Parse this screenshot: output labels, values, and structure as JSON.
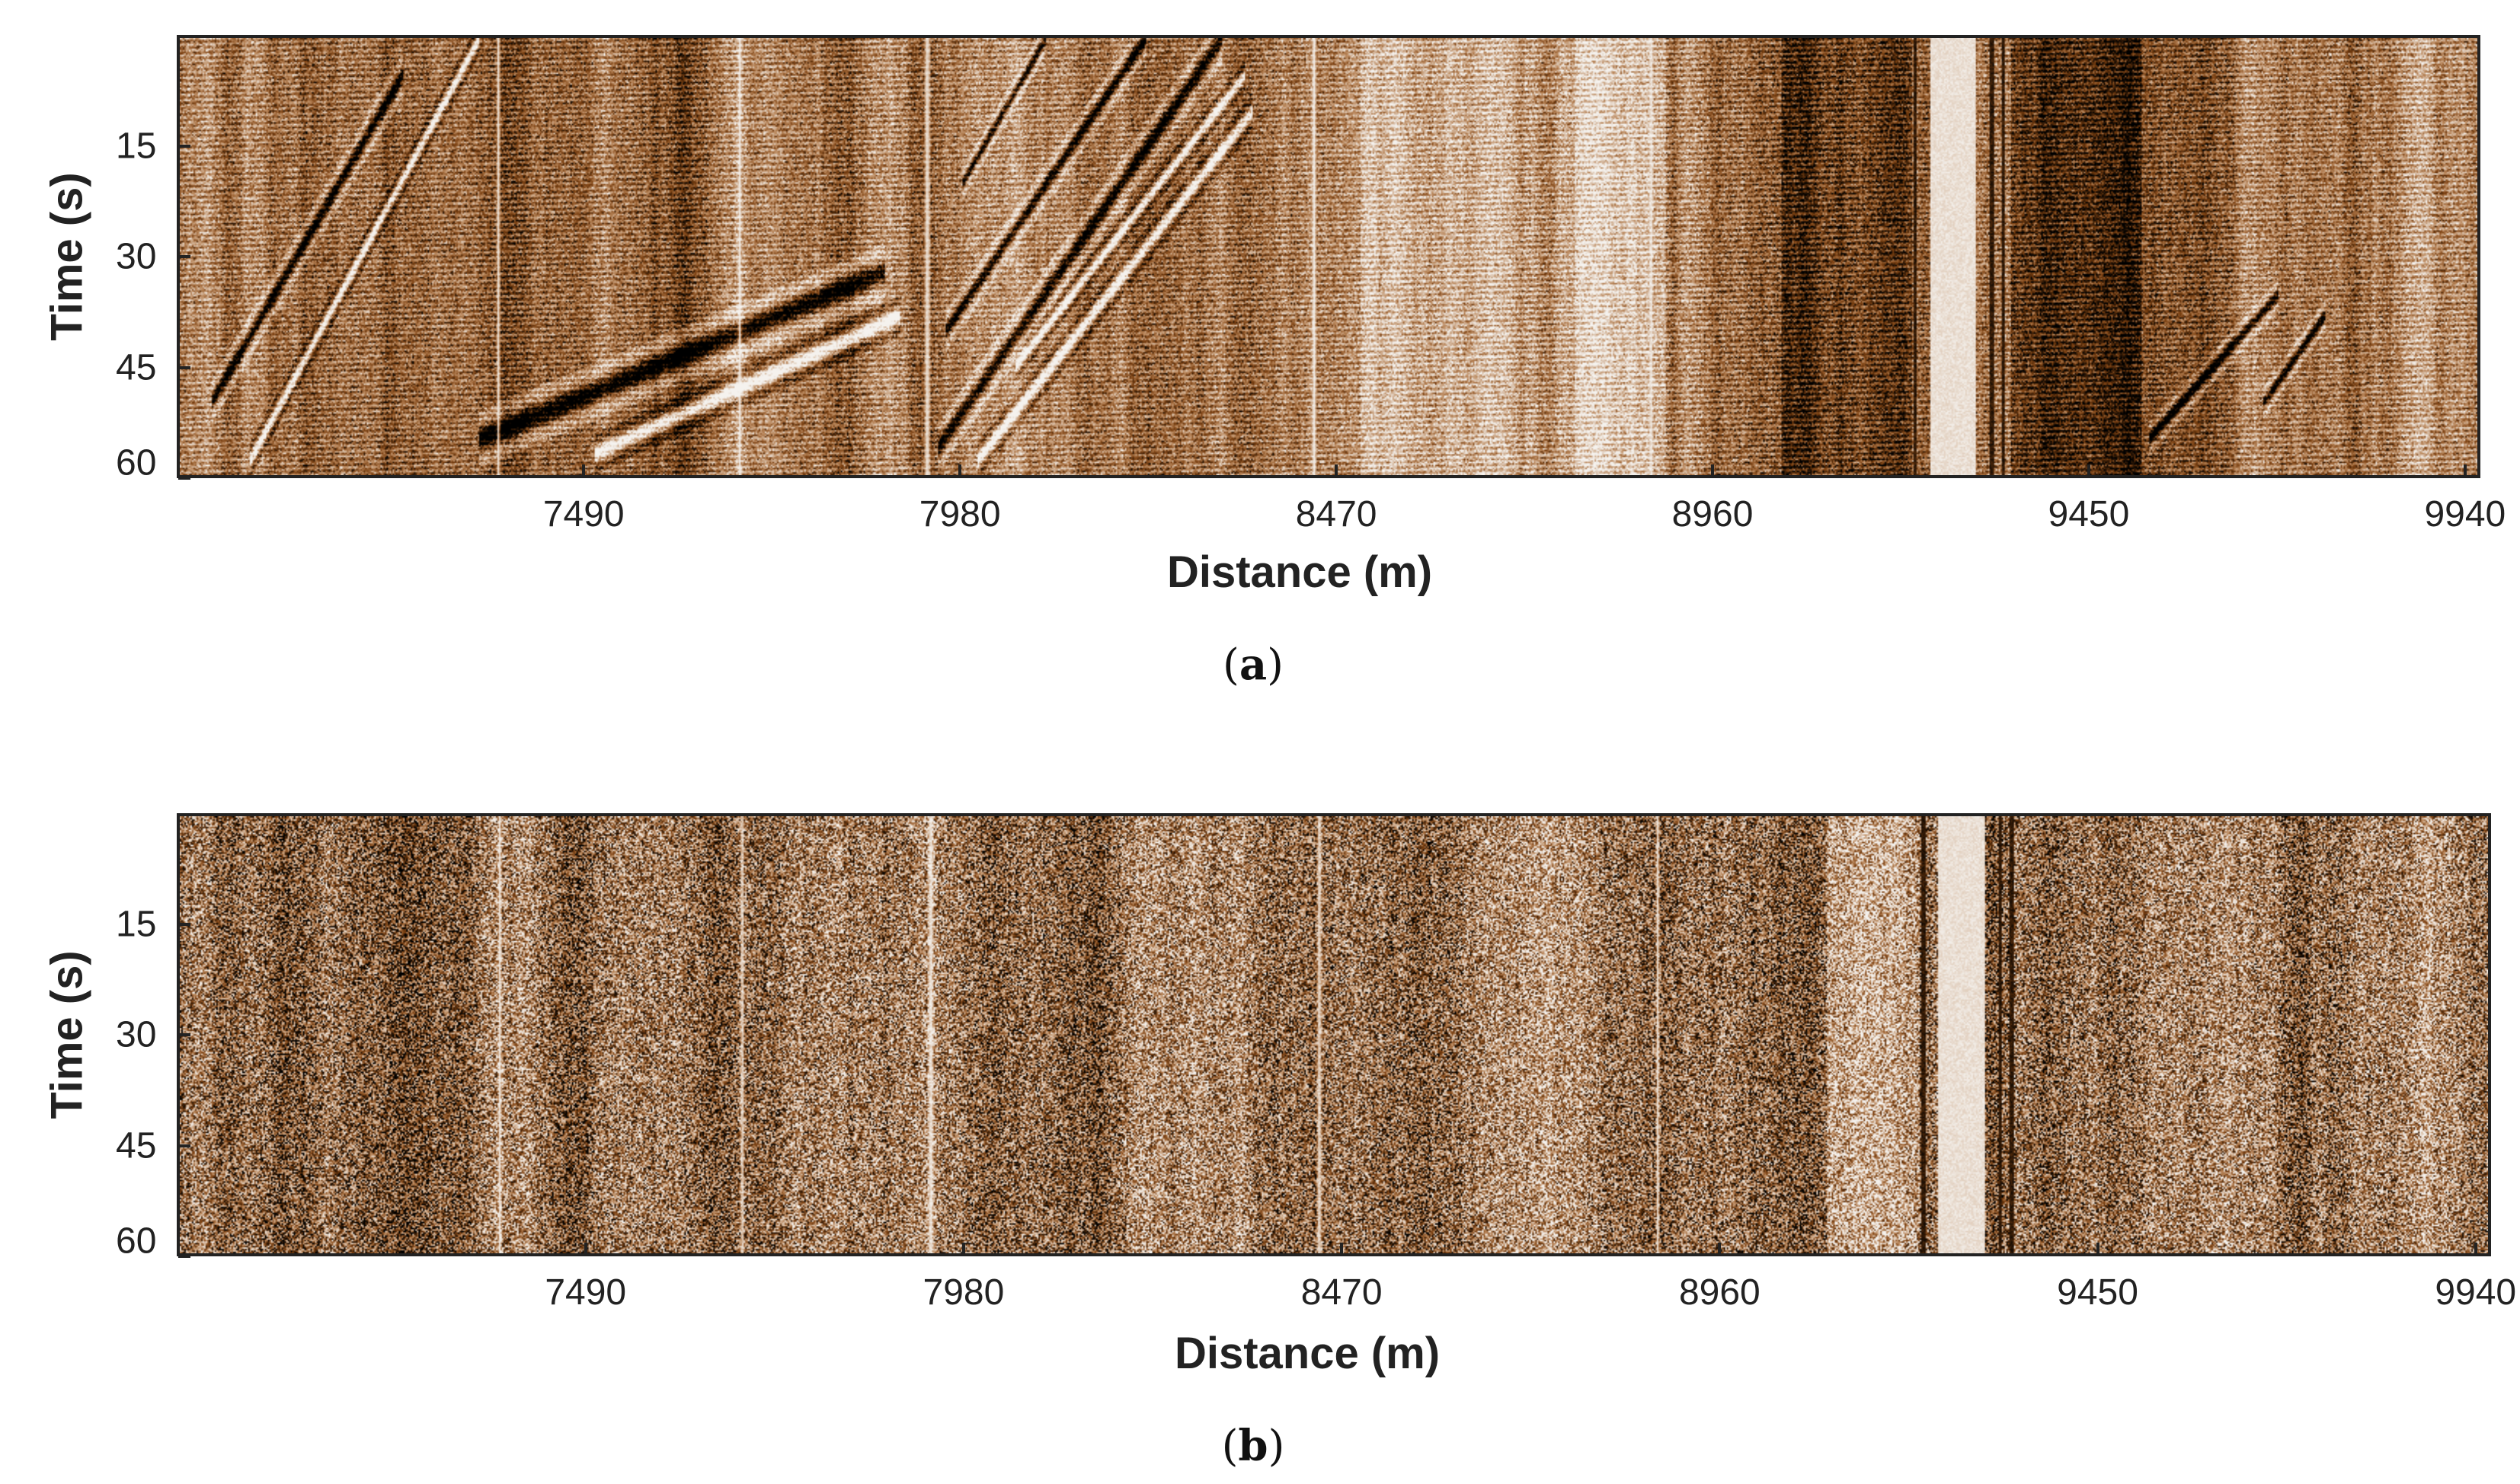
{
  "chart_data": [
    {
      "type": "heatmap",
      "panel_label": "a",
      "xlabel": "Distance (m)",
      "ylabel": "Time (s)",
      "x_ticks": [
        7490,
        7980,
        8470,
        8960,
        9450,
        9940
      ],
      "x_tick_labels": [
        "7490",
        "7980",
        "8470",
        "8960",
        "9450",
        "9940"
      ],
      "y_ticks": [
        15,
        30,
        45,
        60
      ],
      "y_tick_labels": [
        "15",
        "30",
        "45",
        "60"
      ],
      "xlim": [
        6960,
        9960
      ],
      "ylim": [
        60,
        0
      ],
      "y_axis_inverted": true,
      "colormap": [
        "#000000",
        "#7a3f10",
        "#b9865a",
        "#f5f2ee"
      ],
      "grid": false,
      "legend": "none",
      "description_features": "strong diagonal coherent events; bright vertical traces near 7930 and 9230-9330"
    },
    {
      "type": "heatmap",
      "panel_label": "b",
      "xlabel": "Distance (m)",
      "ylabel": "Time (s)",
      "x_ticks": [
        7490,
        7980,
        8470,
        8960,
        9450,
        9940
      ],
      "x_tick_labels": [
        "7490",
        "7980",
        "8470",
        "8960",
        "9450",
        "9940"
      ],
      "y_ticks": [
        15,
        30,
        45,
        60
      ],
      "y_tick_labels": [
        "15",
        "30",
        "45",
        "60"
      ],
      "xlim": [
        6960,
        9960
      ],
      "ylim": [
        60,
        0
      ],
      "y_axis_inverted": true,
      "colormap": [
        "#000000",
        "#7a3f10",
        "#b9865a",
        "#f5f2ee"
      ],
      "grid": false,
      "legend": "none",
      "description_features": "incoherent noise; bright vertical traces near 7930 and 9230-9330"
    }
  ],
  "captions": {
    "a": "a",
    "b": "b"
  }
}
